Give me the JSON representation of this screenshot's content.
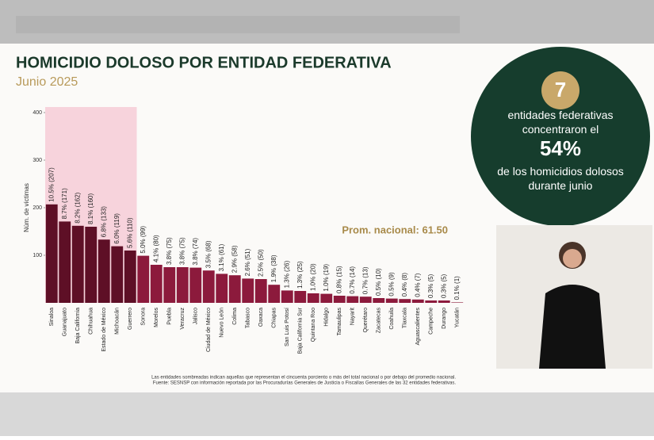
{
  "chart_data": {
    "type": "bar",
    "title": "HOMICIDIO DOLOSO POR ENTIDAD FEDERATIVA",
    "subtitle": "Junio 2025",
    "y_label": "Núm. de víctimas",
    "annotation": "Prom. nacional: 61.50",
    "categories": [
      "Sinaloa",
      "Guanajuato",
      "Baja California",
      "Chihuahua",
      "Estado de México",
      "Michoacán",
      "Guerrero",
      "Sonora",
      "Morelos",
      "Puebla",
      "Veracruz",
      "Jalisco",
      "Ciudad de México",
      "Nuevo León",
      "Colima",
      "Tabasco",
      "Oaxaca",
      "Chiapas",
      "San Luis Potosí",
      "Baja California Sur",
      "Quintana Roo",
      "Hidalgo",
      "Tamaulipas",
      "Nayarit",
      "Querétaro",
      "Zacatecas",
      "Coahuila",
      "Tlaxcala",
      "Aguascalientes",
      "Campeche",
      "Durango",
      "Yucatán"
    ],
    "values": [
      207,
      171,
      162,
      160,
      133,
      119,
      110,
      99,
      80,
      75,
      75,
      74,
      68,
      61,
      58,
      51,
      50,
      38,
      26,
      25,
      20,
      19,
      15,
      14,
      13,
      10,
      9,
      8,
      7,
      5,
      5,
      1
    ],
    "value_labels": [
      "10.5% (207)",
      "8.7% (171)",
      "8.2% (162)",
      "8.1% (160)",
      "6.8% (133)",
      "6.0% (119)",
      "5.6% (110)",
      "5.0% (99)",
      "4.1% (80)",
      "3.8% (75)",
      "3.8% (75)",
      "3.8% (74)",
      "3.5% (68)",
      "3.1% (61)",
      "2.9% (58)",
      "2.6% (51)",
      "2.5% (50)",
      "1.9% (38)",
      "1.3% (26)",
      "1.3% (25)",
      "1.0% (20)",
      "1.0% (19)",
      "0.8% (15)",
      "0.7% (14)",
      "0.7% (13)",
      "0.5% (10)",
      "0.5% (9)",
      "0.4% (8)",
      "0.4% (7)",
      "0.3% (5)",
      "0.3% (5)",
      "0.1% (1)"
    ],
    "colors": [
      "#5e0f26",
      "#5e0f26",
      "#5e0f26",
      "#5e0f26",
      "#5e0f26",
      "#5e0f26",
      "#5e0f26",
      "#8c1a3c",
      "#8c1a3c",
      "#8c1a3c",
      "#8c1a3c",
      "#8c1a3c",
      "#8c1a3c",
      "#8c1a3c",
      "#8c1a3c",
      "#8c1a3c",
      "#8c1a3c",
      "#8c1a3c",
      "#8c1a3c",
      "#8c1a3c",
      "#8c1a3c",
      "#8c1a3c",
      "#8c1a3c",
      "#8c1a3c",
      "#8c1a3c",
      "#8c1a3c",
      "#8c1a3c",
      "#8c1a3c",
      "#8c1a3c",
      "#8c1a3c",
      "#8c1a3c",
      "#8c1a3c"
    ],
    "ylim": [
      0,
      400
    ],
    "yticks": [
      100,
      200,
      300,
      400
    ],
    "grid": false,
    "footnotes": [
      "Las entidades sombreadas indican aquellas que representan el cincuenta porciento o más del total nacional o por debajo del promedio nacional.",
      "Fuente: SESNSP con información reportada por las Procuradurías Generales de Justicia o Fiscalías Generales de las 32 entidades federativas."
    ]
  },
  "callout": {
    "number": "7",
    "text_top": "entidades federativas concentraron el",
    "percent": "54%",
    "text_bottom": "de los homicidios dolosos durante junio"
  }
}
